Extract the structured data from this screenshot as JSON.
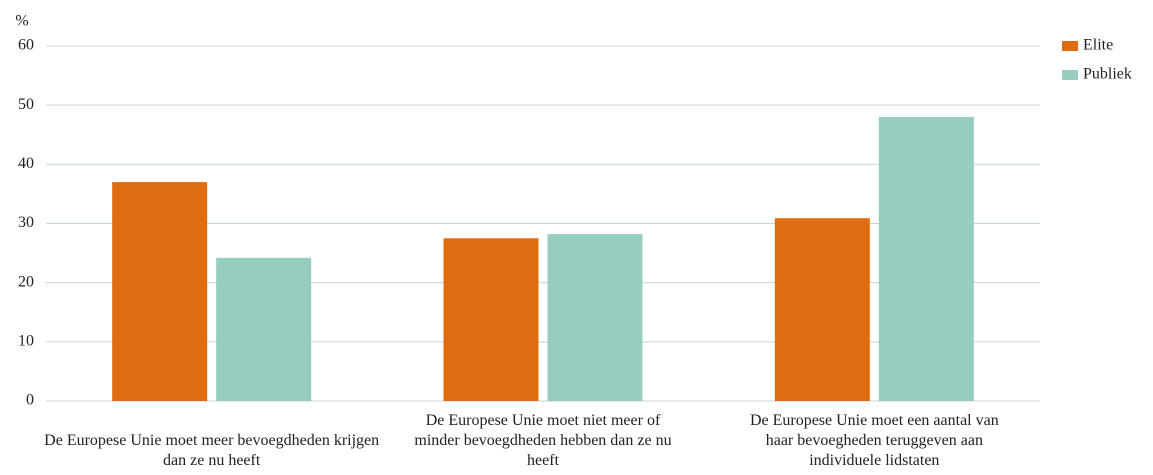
{
  "chart_data": {
    "type": "bar",
    "ylabel": "%",
    "categories": [
      "De Europese Unie moet meer bevoegdheden krijgen dan ze nu heeft",
      "De Europese Unie moet niet meer of minder bevoegdheden hebben dan ze nu heeft",
      "De Europese Unie moet een aantal van haar bevoegheden teruggeven aan individuele lidstaten"
    ],
    "series": [
      {
        "name": "Elite",
        "color": "#e06c12",
        "values": [
          37,
          27.5,
          30.9
        ]
      },
      {
        "name": "Publiek",
        "color": "#96cdbf",
        "values": [
          24.2,
          28.2,
          48
        ]
      }
    ],
    "ylim": [
      0,
      60
    ],
    "yticks": [
      0,
      10,
      20,
      30,
      40,
      50,
      60
    ],
    "grid": true,
    "legend": "top-right"
  }
}
